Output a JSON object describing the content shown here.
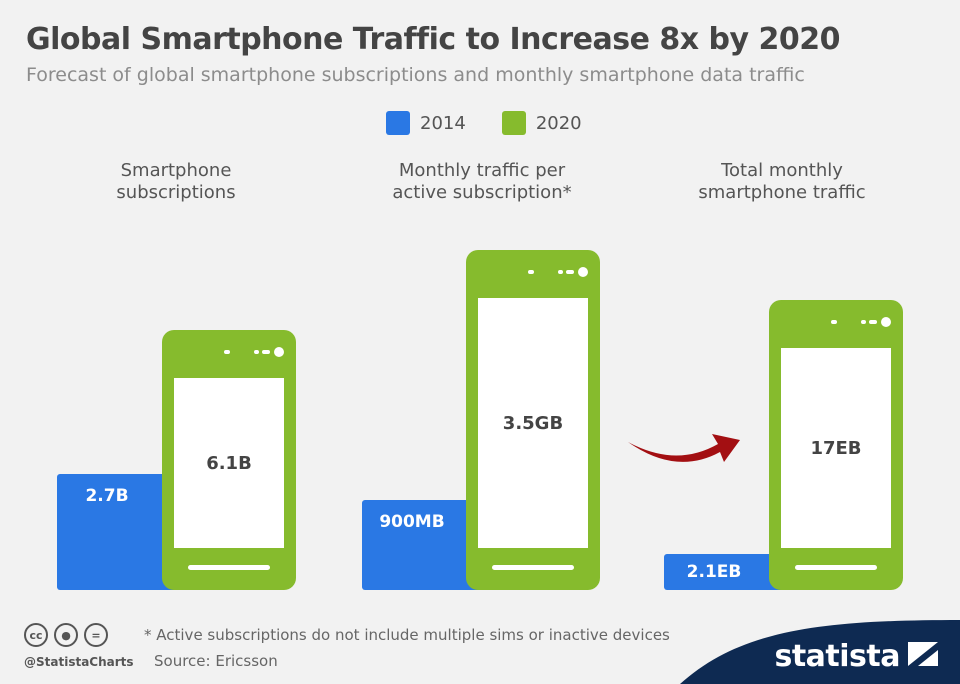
{
  "header": {
    "title": "Global Smartphone Traffic to Increase 8x by 2020",
    "subtitle": "Forecast of global smartphone subscriptions and monthly smartphone data traffic"
  },
  "legend": [
    {
      "label": "2014",
      "color": "#2a78e4"
    },
    {
      "label": "2020",
      "color": "#86bb2d"
    }
  ],
  "chart_data": [
    {
      "type": "bar",
      "title": "Smartphone\nsubscriptions",
      "categories": [
        "2014",
        "2020"
      ],
      "values": [
        2.7,
        6.1
      ],
      "unit": "B",
      "labels": [
        "2.7B",
        "6.1B"
      ]
    },
    {
      "type": "bar",
      "title": "Monthly traffic per\nactive subscription*",
      "categories": [
        "2014",
        "2020"
      ],
      "values": [
        0.9,
        3.5
      ],
      "unit": "GB",
      "labels": [
        "900MB",
        "3.5GB"
      ]
    },
    {
      "type": "bar",
      "title": "Total monthly\nsmartphone traffic",
      "categories": [
        "2014",
        "2020"
      ],
      "values": [
        2.1,
        17
      ],
      "unit": "EB",
      "labels": [
        "2.1EB",
        "17EB"
      ]
    }
  ],
  "footer": {
    "note": "* Active subscriptions do not include multiple sims or inactive devices",
    "source": "Source: Ericsson",
    "handle": "@StatistaCharts",
    "brand": "statista",
    "license_icons": [
      "cc-icon",
      "attribution-icon",
      "no-derivatives-icon"
    ]
  },
  "colors": {
    "blue": "#2a78e4",
    "green": "#86bb2d",
    "arrow": "#a30f12",
    "brand_bg": "#0e2a52"
  }
}
